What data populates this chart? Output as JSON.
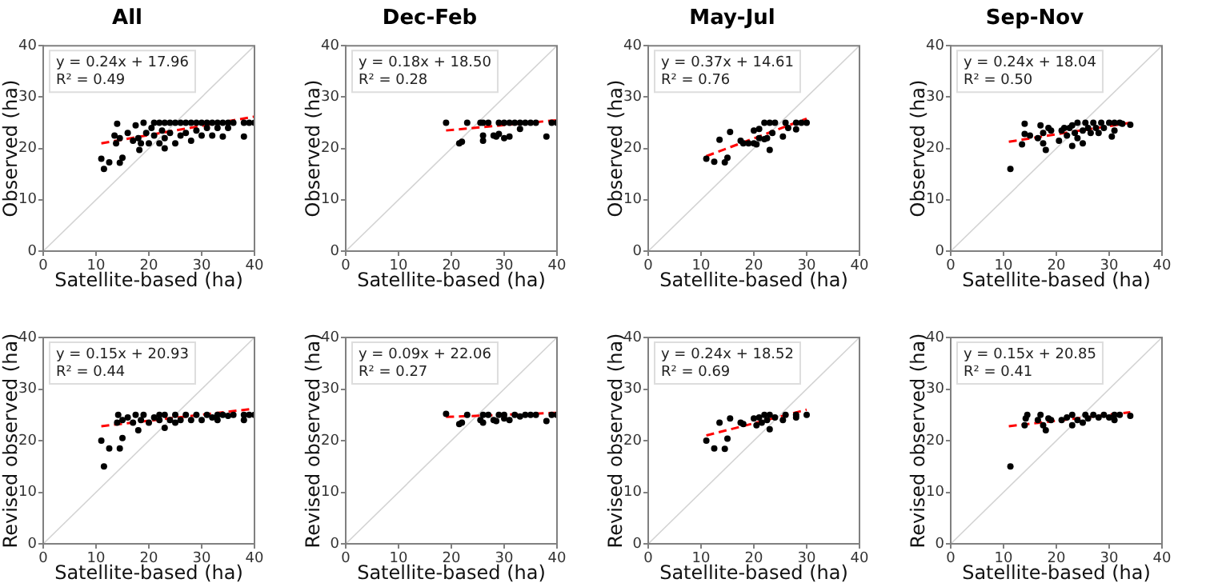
{
  "chart_data": [
    {
      "type": "scatter",
      "title": "All",
      "xlabel": "Satellite-based (ha)",
      "ylabel": "Observed (ha)",
      "xlim": [
        0,
        40
      ],
      "ylim": [
        0,
        40
      ],
      "xticks": [
        0,
        10,
        20,
        30,
        40
      ],
      "yticks": [
        0,
        10,
        20,
        30,
        40
      ],
      "annotations": [
        "y = 0.24x + 17.96",
        "R² = 0.49"
      ],
      "series": [
        {
          "type": "line",
          "color": "#d3d3d3",
          "marker": "none",
          "x": [
            0,
            40
          ],
          "values": [
            0,
            40
          ]
        },
        {
          "type": "scatter",
          "color": "#000000",
          "marker": "circle",
          "x": [
            11,
            11.5,
            12.5,
            14.5,
            15,
            13.5,
            14,
            13.8,
            14.5,
            16,
            17,
            17.5,
            18,
            18.2,
            18.5,
            19,
            19.5,
            20,
            20.5,
            21,
            21,
            22,
            22,
            22.5,
            23,
            23,
            23,
            24,
            24,
            25,
            25,
            26,
            26,
            27,
            27,
            28,
            28,
            29,
            29,
            30,
            30,
            31,
            31,
            32,
            32,
            33,
            33,
            34,
            34,
            35,
            35,
            36,
            38,
            38,
            39,
            40
          ],
          "values": [
            18,
            16,
            17.3,
            17.2,
            18.2,
            22.5,
            24.8,
            21,
            22,
            23,
            21.5,
            24.5,
            22,
            19.7,
            21,
            25,
            23,
            21,
            24,
            22.5,
            25,
            21,
            25,
            23.5,
            20,
            22,
            25,
            23,
            25,
            21,
            25,
            22.5,
            25,
            23,
            25,
            21.5,
            25,
            23.5,
            25,
            22.5,
            25,
            24,
            25,
            22.5,
            25,
            24,
            25,
            22.3,
            25,
            24,
            25,
            25,
            22.3,
            25,
            25,
            25
          ]
        },
        {
          "type": "line",
          "color": "#ff0000",
          "marker": "none",
          "line_style": "dashed",
          "x": [
            11,
            40
          ],
          "values": [
            21,
            26.2
          ]
        }
      ]
    },
    {
      "type": "scatter",
      "title": "Dec-Feb",
      "xlabel": "Satellite-based (ha)",
      "ylabel": "Observed (ha)",
      "xlim": [
        0,
        40
      ],
      "ylim": [
        0,
        40
      ],
      "xticks": [
        0,
        10,
        20,
        30,
        40
      ],
      "yticks": [
        0,
        10,
        20,
        30,
        40
      ],
      "annotations": [
        "y = 0.18x + 18.50",
        "R² = 0.28"
      ],
      "series": [
        {
          "type": "line",
          "color": "#d3d3d3",
          "marker": "none",
          "x": [
            0,
            40
          ],
          "values": [
            0,
            40
          ]
        },
        {
          "type": "scatter",
          "color": "#000000",
          "marker": "circle",
          "x": [
            19,
            21.5,
            22,
            23,
            25.5,
            26,
            26,
            26,
            27,
            28,
            28.5,
            29,
            29,
            30,
            30,
            31,
            31,
            32,
            33,
            33,
            34,
            35,
            36,
            38,
            39,
            40
          ],
          "values": [
            25,
            21,
            21.3,
            25,
            25,
            22.5,
            21.5,
            25,
            25,
            22.5,
            22.3,
            22.8,
            25,
            25,
            22,
            22.3,
            25,
            25,
            23.8,
            25,
            25,
            25,
            25,
            22.3,
            25,
            25
          ]
        },
        {
          "type": "line",
          "color": "#ff0000",
          "marker": "none",
          "line_style": "dashed",
          "x": [
            19,
            40
          ],
          "values": [
            23.5,
            25.5
          ]
        }
      ]
    },
    {
      "type": "scatter",
      "title": "May-Jul",
      "xlabel": "Satellite-based (ha)",
      "ylabel": "Observed (ha)",
      "xlim": [
        0,
        40
      ],
      "ylim": [
        0,
        40
      ],
      "xticks": [
        0,
        10,
        20,
        30,
        40
      ],
      "yticks": [
        0,
        10,
        20,
        30,
        40
      ],
      "annotations": [
        "y = 0.37x + 14.61",
        "R² = 0.76"
      ],
      "series": [
        {
          "type": "line",
          "color": "#d3d3d3",
          "marker": "none",
          "x": [
            0,
            40
          ],
          "values": [
            0,
            40
          ]
        },
        {
          "type": "scatter",
          "color": "#000000",
          "marker": "circle",
          "x": [
            11,
            12.5,
            13.5,
            14.5,
            15,
            15.5,
            17.5,
            18,
            19,
            20,
            20,
            20.5,
            21,
            21,
            22,
            22,
            22.5,
            23,
            23,
            23.5,
            24,
            25.5,
            26,
            26.5,
            28,
            28,
            29,
            30
          ],
          "values": [
            18,
            17.4,
            21.7,
            17.3,
            18.2,
            23.2,
            21.5,
            21,
            21,
            21,
            23.5,
            20.8,
            22,
            23.8,
            25,
            21.8,
            22,
            19.7,
            25,
            23,
            25,
            22.3,
            25,
            24,
            25,
            23.7,
            25,
            25
          ]
        },
        {
          "type": "line",
          "color": "#ff0000",
          "marker": "none",
          "line_style": "dashed",
          "x": [
            11,
            30
          ],
          "values": [
            18.5,
            25.8
          ]
        }
      ]
    },
    {
      "type": "scatter",
      "title": "Sep-Nov",
      "xlabel": "Satellite-based (ha)",
      "ylabel": "Observed (ha)",
      "xlim": [
        0,
        40
      ],
      "ylim": [
        0,
        40
      ],
      "xticks": [
        0,
        10,
        20,
        30,
        40
      ],
      "yticks": [
        0,
        10,
        20,
        30,
        40
      ],
      "annotations": [
        "y = 0.24x + 18.04",
        "R² = 0.50"
      ],
      "series": [
        {
          "type": "line",
          "color": "#d3d3d3",
          "marker": "none",
          "x": [
            0,
            40
          ],
          "values": [
            0,
            40
          ]
        },
        {
          "type": "scatter",
          "color": "#000000",
          "marker": "circle",
          "x": [
            11.3,
            13.5,
            14,
            14,
            15,
            16.5,
            17,
            17.5,
            17.5,
            18,
            18.5,
            19,
            20.5,
            21,
            21.5,
            22,
            22.5,
            23,
            23,
            23.5,
            24,
            24,
            25,
            25,
            25.5,
            26,
            26.5,
            27,
            27.5,
            28,
            28.5,
            29,
            30,
            30.5,
            31,
            31,
            32,
            32.5,
            34
          ],
          "values": [
            16,
            20.8,
            22.8,
            24.8,
            22.5,
            22,
            24.5,
            21,
            23,
            19.7,
            24,
            23.5,
            21.5,
            23.5,
            24,
            22.5,
            24,
            20.5,
            24.5,
            23,
            25,
            22,
            23.5,
            21,
            25,
            24,
            23,
            25,
            24,
            23,
            25,
            24,
            25,
            22.3,
            23.5,
            25,
            25,
            24.8,
            24.6
          ]
        },
        {
          "type": "line",
          "color": "#ff0000",
          "marker": "none",
          "line_style": "dashed",
          "x": [
            11,
            34
          ],
          "values": [
            21.3,
            25
          ]
        }
      ]
    },
    {
      "type": "scatter",
      "xlabel": "Satellite-based (ha)",
      "ylabel": "Revised observed (ha)",
      "xlim": [
        0,
        40
      ],
      "ylim": [
        0,
        40
      ],
      "xticks": [
        0,
        10,
        20,
        30,
        40
      ],
      "yticks": [
        0,
        10,
        20,
        30,
        40
      ],
      "annotations": [
        "y = 0.15x + 20.93",
        "R² = 0.44"
      ],
      "series": [
        {
          "type": "line",
          "color": "#d3d3d3",
          "marker": "none",
          "x": [
            0,
            40
          ],
          "values": [
            0,
            40
          ]
        },
        {
          "type": "scatter",
          "color": "#000000",
          "marker": "circle",
          "x": [
            11,
            11.5,
            12.5,
            14.5,
            15,
            14,
            14.2,
            15,
            16,
            17,
            17.5,
            18,
            18.5,
            19,
            20,
            21,
            22,
            22,
            23,
            23,
            24,
            25,
            25,
            26,
            27,
            28,
            29,
            30,
            31,
            32,
            33,
            33,
            34,
            35,
            36,
            38,
            38,
            39,
            40
          ],
          "values": [
            20,
            15,
            18.5,
            18.5,
            20.5,
            23.5,
            25,
            24,
            24.5,
            23.5,
            25,
            22,
            24,
            25,
            23.5,
            24.5,
            24,
            25,
            22.5,
            25,
            24,
            25,
            23.5,
            24,
            25,
            24,
            25,
            24,
            25,
            24.5,
            24,
            25,
            25,
            24.8,
            25,
            24,
            25,
            25,
            25
          ]
        },
        {
          "type": "line",
          "color": "#ff0000",
          "marker": "none",
          "line_style": "dashed",
          "x": [
            11,
            40
          ],
          "values": [
            22.8,
            26.2
          ]
        }
      ]
    },
    {
      "type": "scatter",
      "xlabel": "Satellite-based (ha)",
      "ylabel": "Revised observed (ha)",
      "xlim": [
        0,
        40
      ],
      "ylim": [
        0,
        40
      ],
      "xticks": [
        0,
        10,
        20,
        30,
        40
      ],
      "yticks": [
        0,
        10,
        20,
        30,
        40
      ],
      "annotations": [
        "y = 0.09x + 22.06",
        "R² = 0.27"
      ],
      "series": [
        {
          "type": "line",
          "color": "#d3d3d3",
          "marker": "none",
          "x": [
            0,
            40
          ],
          "values": [
            0,
            40
          ]
        },
        {
          "type": "scatter",
          "color": "#000000",
          "marker": "circle",
          "x": [
            19,
            21.5,
            22,
            23,
            25.5,
            26,
            26,
            27,
            28,
            28.5,
            29,
            30,
            30,
            31,
            32,
            33,
            34,
            35,
            36,
            38,
            39,
            40
          ],
          "values": [
            25.2,
            23.2,
            23.5,
            25,
            24,
            23.5,
            25,
            25,
            24,
            23.8,
            25,
            24.3,
            25,
            24,
            25,
            24.7,
            25,
            25,
            25,
            23.8,
            25,
            25
          ]
        },
        {
          "type": "line",
          "color": "#ff0000",
          "marker": "none",
          "line_style": "dashed",
          "x": [
            19,
            40
          ],
          "values": [
            24.6,
            25.4
          ]
        }
      ]
    },
    {
      "type": "scatter",
      "xlabel": "Satellite-based (ha)",
      "ylabel": "Revised observed (ha)",
      "xlim": [
        0,
        40
      ],
      "ylim": [
        0,
        40
      ],
      "xticks": [
        0,
        10,
        20,
        30,
        40
      ],
      "yticks": [
        0,
        10,
        20,
        30,
        40
      ],
      "annotations": [
        "y = 0.24x + 18.52",
        "R² = 0.69"
      ],
      "series": [
        {
          "type": "line",
          "color": "#d3d3d3",
          "marker": "none",
          "x": [
            0,
            40
          ],
          "values": [
            0,
            40
          ]
        },
        {
          "type": "scatter",
          "color": "#000000",
          "marker": "circle",
          "x": [
            11,
            12.5,
            13.5,
            14.5,
            15,
            15.5,
            17.5,
            18,
            20,
            20.5,
            21,
            21.5,
            22,
            22.5,
            23,
            23,
            24,
            25.5,
            26,
            28,
            28,
            30
          ],
          "values": [
            20,
            18.5,
            23.5,
            18.4,
            20.4,
            24.3,
            23.5,
            23.2,
            24.3,
            23,
            24.5,
            23.5,
            25,
            24,
            22.2,
            25,
            24.5,
            24,
            25,
            24.5,
            25,
            25
          ]
        },
        {
          "type": "line",
          "color": "#ff0000",
          "marker": "none",
          "line_style": "dashed",
          "x": [
            11,
            30
          ],
          "values": [
            21,
            26
          ]
        }
      ]
    },
    {
      "type": "scatter",
      "xlabel": "Satellite-based (ha)",
      "ylabel": "Revised observed (ha)",
      "xlim": [
        0,
        40
      ],
      "ylim": [
        0,
        40
      ],
      "xticks": [
        0,
        10,
        20,
        30,
        40
      ],
      "yticks": [
        0,
        10,
        20,
        30,
        40
      ],
      "annotations": [
        "y = 0.15x + 20.85",
        "R² = 0.41"
      ],
      "series": [
        {
          "type": "line",
          "color": "#d3d3d3",
          "marker": "none",
          "x": [
            0,
            40
          ],
          "values": [
            0,
            40
          ]
        },
        {
          "type": "scatter",
          "color": "#000000",
          "marker": "circle",
          "x": [
            11.3,
            14,
            14.2,
            14.5,
            16.5,
            17,
            17.5,
            18,
            18.5,
            19,
            21,
            22,
            23,
            23,
            24,
            25,
            25.5,
            26,
            27,
            28,
            29,
            30,
            31,
            31,
            32,
            34
          ],
          "values": [
            15,
            23,
            24.3,
            25,
            24,
            25,
            23,
            22,
            24.3,
            24,
            24,
            24.5,
            23,
            25,
            24,
            23.5,
            25,
            24.3,
            25,
            24.5,
            25,
            24.5,
            24,
            25,
            25,
            24.8
          ]
        },
        {
          "type": "line",
          "color": "#ff0000",
          "marker": "none",
          "line_style": "dashed",
          "x": [
            11,
            34
          ],
          "values": [
            22.8,
            25.5
          ]
        }
      ]
    }
  ]
}
